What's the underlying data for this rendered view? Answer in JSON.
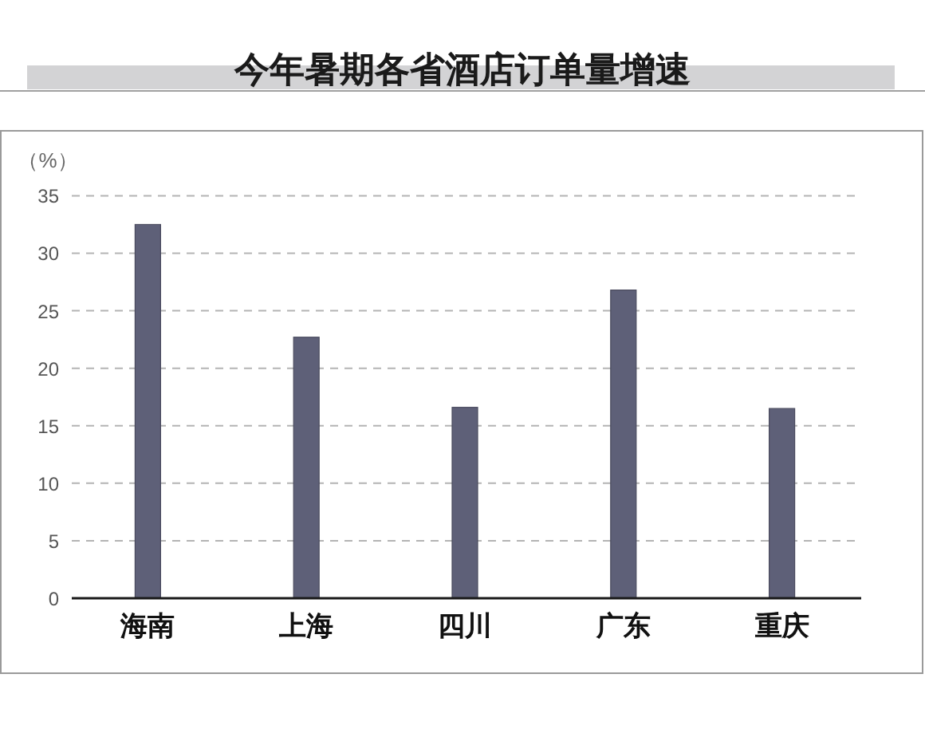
{
  "chart_data": {
    "type": "bar",
    "title": "今年暑期各省酒店订单量增速",
    "ylabel": "（%）",
    "categories": [
      "海南",
      "上海",
      "四川",
      "广东",
      "重庆"
    ],
    "values": [
      32.5,
      22.7,
      16.6,
      26.8,
      16.5
    ],
    "color": "#5e6078",
    "ylim": [
      0,
      35
    ],
    "yticks": [
      0,
      5,
      10,
      15,
      20,
      25,
      30,
      35
    ],
    "grid": "y"
  }
}
